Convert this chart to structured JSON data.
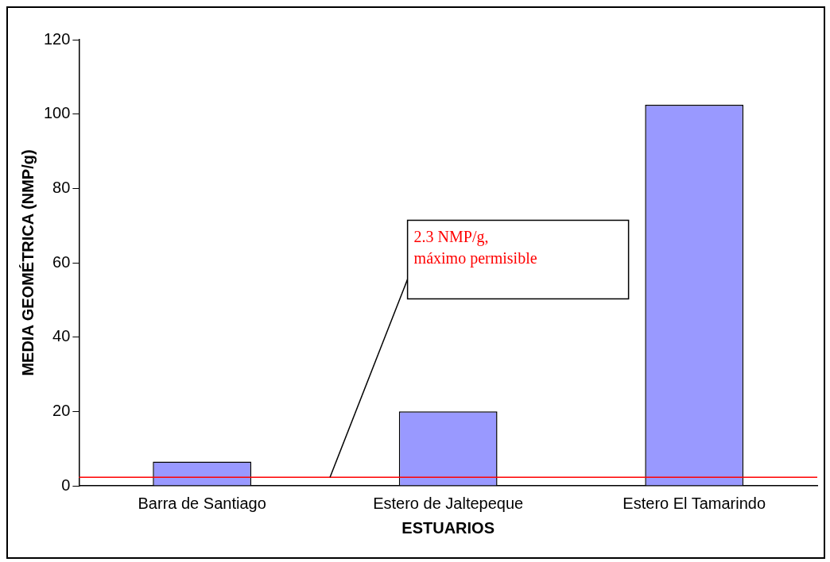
{
  "chart_data": {
    "type": "bar",
    "xlabel": "ESTUARIOS",
    "ylabel": "MEDIA GEOMÉTRICA (NMP/g)",
    "categories": [
      "Barra de Santiago",
      "Estero de Jaltepeque",
      "Estero El Tamarindo"
    ],
    "values": [
      6.5,
      20,
      102.5
    ],
    "color": "#9999ff",
    "ylim": [
      0,
      120
    ],
    "yticks": [
      0,
      20,
      40,
      60,
      80,
      100,
      120
    ],
    "grid": false,
    "legend": false,
    "ref_lines": [
      {
        "axis": "y",
        "value": 2.3,
        "label": "2.3 NMP/g,\nmáximo permisible",
        "color": "#ff0000"
      }
    ]
  }
}
